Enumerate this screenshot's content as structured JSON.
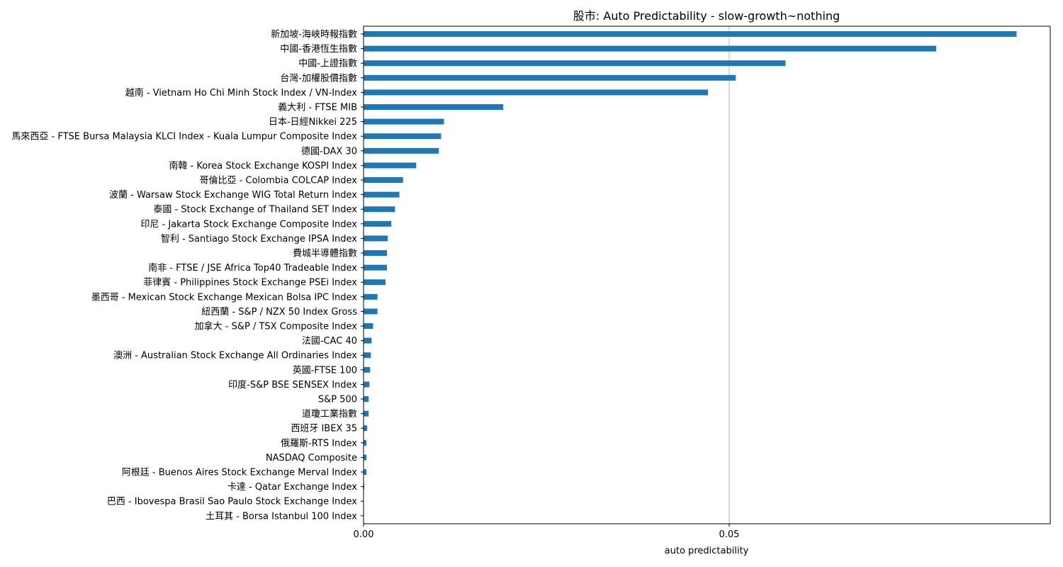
{
  "chart_data": {
    "type": "bar",
    "orientation": "horizontal",
    "title": "股市: Auto Predictability - slow-growth~nothing",
    "xlabel": "auto predictability",
    "ylabel": "",
    "xlim": [
      0,
      0.0939
    ],
    "xticks": [
      0,
      0.05
    ],
    "xtick_labels": [
      "0.00",
      "0.05"
    ],
    "grid": "vertical at 0.05",
    "bar_color": "#1f77b4",
    "categories": [
      "新加坡-海峽時報指數",
      "中國-香港恆生指數",
      "中國-上證指數",
      "台灣-加權股價指數",
      "越南 - Vietnam Ho Chi Minh Stock Index  /  VN-Index",
      "義大利 - FTSE MIB",
      "日本-日經Nikkei 225",
      "馬來西亞 - FTSE Bursa Malaysia KLCI Index - Kuala Lumpur Composite Index",
      "德國-DAX 30",
      "南韓 - Korea Stock Exchange KOSPI Index",
      "哥倫比亞 - Colombia COLCAP Index",
      "波蘭 - Warsaw Stock Exchange WIG Total Return Index",
      "泰國 - Stock Exchange of Thailand SET Index",
      "印尼 - Jakarta Stock Exchange Composite Index",
      "智利 - Santiago Stock Exchange IPSA Index",
      "費城半導體指數",
      "南非 - FTSE / JSE Africa Top40 Tradeable Index",
      "菲律賓 - Philippines Stock Exchange PSEi Index",
      "墨西哥 - Mexican Stock Exchange Mexican Bolsa IPC Index",
      "紐西蘭 - S&P / NZX 50 Index Gross",
      "加拿大 - S&P / TSX Composite Index",
      "法國-CAC 40",
      "澳洲 - Australian Stock Exchange All Ordinaries Index",
      "英國-FTSE 100",
      "印度-S&P BSE SENSEX Index",
      "S&P 500",
      "道瓊工業指數",
      "西班牙 IBEX 35",
      "俄羅斯-RTS Index",
      "NASDAQ Composite",
      "阿根廷 - Buenos Aires Stock Exchange Merval Index",
      "卡達 - Qatar Exchange Index",
      "巴西 - Ibovespa Brasil Sao Paulo Stock Exchange Index",
      "土耳其 - Borsa Istanbul 100 Index"
    ],
    "values": [
      0.0893,
      0.0783,
      0.0577,
      0.0509,
      0.0471,
      0.0191,
      0.011,
      0.0106,
      0.0103,
      0.0072,
      0.0054,
      0.0049,
      0.0043,
      0.0038,
      0.0033,
      0.0032,
      0.0032,
      0.003,
      0.0019,
      0.0019,
      0.0013,
      0.0011,
      0.001,
      0.0009,
      0.0008,
      0.0007,
      0.0007,
      0.0005,
      0.0004,
      0.0004,
      0.0004,
      0.0001,
      5e-05,
      5e-05
    ]
  }
}
